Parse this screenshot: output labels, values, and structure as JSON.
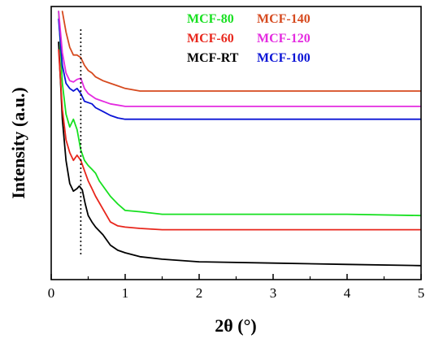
{
  "chart_data": {
    "type": "line",
    "title": "",
    "xlabel": "2θ (°)",
    "ylabel": "Intensity (a.u.)",
    "xlim": [
      0,
      5
    ],
    "ylim": [
      0,
      1
    ],
    "xticks": [
      "0",
      "1",
      "2",
      "3",
      "4",
      "5"
    ],
    "yticks_shown": false,
    "grid": false,
    "legend_position": "top-center",
    "reference_line": {
      "x": 0.4,
      "style": "dotted"
    },
    "series": [
      {
        "name": "MCF-RT",
        "color": "#000000",
        "x": [
          0.1,
          0.15,
          0.2,
          0.25,
          0.3,
          0.35,
          0.38,
          0.42,
          0.46,
          0.5,
          0.55,
          0.6,
          0.7,
          0.8,
          0.9,
          1.0,
          1.2,
          1.5,
          2.0,
          3.0,
          4.0,
          5.0
        ],
        "y": [
          0.88,
          0.58,
          0.42,
          0.33,
          0.3,
          0.31,
          0.32,
          0.305,
          0.25,
          0.205,
          0.18,
          0.16,
          0.13,
          0.09,
          0.07,
          0.06,
          0.045,
          0.035,
          0.025,
          0.02,
          0.015,
          0.01
        ]
      },
      {
        "name": "MCF-60",
        "color": "#e8261c",
        "x": [
          0.1,
          0.15,
          0.2,
          0.25,
          0.3,
          0.35,
          0.4,
          0.45,
          0.5,
          0.55,
          0.6,
          0.7,
          0.8,
          0.9,
          1.0,
          1.2,
          1.5,
          2.0,
          3.0,
          4.0,
          5.0
        ],
        "y": [
          0.85,
          0.62,
          0.5,
          0.45,
          0.42,
          0.44,
          0.42,
          0.38,
          0.34,
          0.31,
          0.28,
          0.23,
          0.18,
          0.165,
          0.16,
          0.155,
          0.15,
          0.15,
          0.15,
          0.15,
          0.15
        ]
      },
      {
        "name": "MCF-80",
        "color": "#17e020",
        "x": [
          0.1,
          0.15,
          0.2,
          0.25,
          0.3,
          0.35,
          0.4,
          0.45,
          0.5,
          0.55,
          0.6,
          0.65,
          0.7,
          0.8,
          0.9,
          1.0,
          1.2,
          1.5,
          2.0,
          3.0,
          4.0,
          5.0
        ],
        "y": [
          1.0,
          0.72,
          0.6,
          0.55,
          0.58,
          0.54,
          0.46,
          0.42,
          0.4,
          0.385,
          0.37,
          0.34,
          0.32,
          0.28,
          0.25,
          0.225,
          0.22,
          0.21,
          0.21,
          0.21,
          0.21,
          0.205
        ]
      },
      {
        "name": "MCF-100",
        "color": "#0b14d6",
        "x": [
          0.1,
          0.15,
          0.2,
          0.25,
          0.3,
          0.35,
          0.4,
          0.45,
          0.5,
          0.55,
          0.6,
          0.7,
          0.8,
          0.9,
          1.0,
          1.2,
          1.5,
          2.0,
          3.0,
          4.0,
          5.0
        ],
        "y": [
          0.97,
          0.79,
          0.72,
          0.7,
          0.69,
          0.7,
          0.68,
          0.65,
          0.645,
          0.64,
          0.625,
          0.61,
          0.595,
          0.585,
          0.58,
          0.58,
          0.58,
          0.58,
          0.58,
          0.58,
          0.58
        ]
      },
      {
        "name": "MCF-120",
        "color": "#e42be0",
        "x": [
          0.1,
          0.15,
          0.2,
          0.25,
          0.3,
          0.35,
          0.4,
          0.45,
          0.5,
          0.55,
          0.6,
          0.7,
          0.8,
          0.9,
          1.0,
          1.2,
          1.5,
          2.0,
          3.0,
          4.0,
          5.0
        ],
        "y": [
          1.0,
          0.84,
          0.76,
          0.73,
          0.725,
          0.735,
          0.74,
          0.7,
          0.68,
          0.67,
          0.66,
          0.65,
          0.64,
          0.635,
          0.63,
          0.63,
          0.63,
          0.63,
          0.63,
          0.63,
          0.63
        ]
      },
      {
        "name": "MCF-140",
        "color": "#d64a1f",
        "x": [
          0.15,
          0.2,
          0.25,
          0.3,
          0.35,
          0.4,
          0.45,
          0.5,
          0.55,
          0.6,
          0.7,
          0.8,
          0.9,
          1.0,
          1.1,
          1.2,
          1.5,
          2.0,
          3.0,
          4.0,
          5.0
        ],
        "y": [
          1.0,
          0.92,
          0.86,
          0.83,
          0.83,
          0.82,
          0.79,
          0.77,
          0.76,
          0.745,
          0.73,
          0.72,
          0.71,
          0.7,
          0.695,
          0.69,
          0.69,
          0.69,
          0.69,
          0.69,
          0.69
        ]
      }
    ]
  },
  "legend_rows": [
    [
      "MCF-80",
      "MCF-140"
    ],
    [
      "MCF-60",
      "MCF-120"
    ],
    [
      "MCF-RT",
      "MCF-100"
    ]
  ]
}
